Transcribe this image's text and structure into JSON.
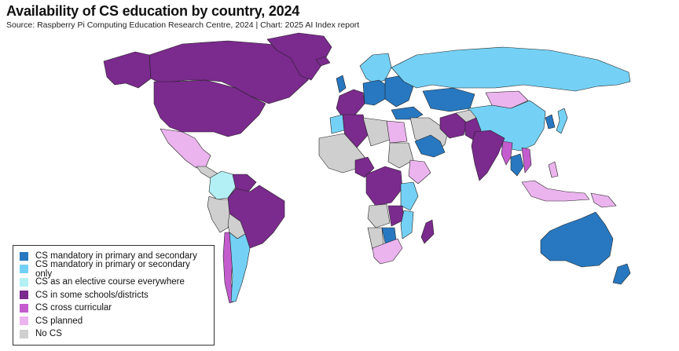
{
  "header": {
    "title": "Availability of CS education by country, 2024",
    "source": "Source: Raspberry Pi Computing Education Research Centre, 2024 | Chart: 2025 AI Index report"
  },
  "legend": {
    "items": [
      {
        "label": "CS mandatory in primary and secondary",
        "color": "#2778c0"
      },
      {
        "label": "CS mandatory in primary or secondary only",
        "color": "#74d1f5"
      },
      {
        "label": "CS as an elective course everywhere",
        "color": "#b3f0f5"
      },
      {
        "label": "CS in some schools/districts",
        "color": "#7b2a8e"
      },
      {
        "label": "CS cross curricular",
        "color": "#c35ccd"
      },
      {
        "label": "CS planned",
        "color": "#ebb4ee"
      },
      {
        "label": "No CS",
        "color": "#cfcfcf"
      }
    ]
  },
  "map": {
    "regions": [
      {
        "name": "Alaska",
        "category": 3
      },
      {
        "name": "Canada",
        "category": 3
      },
      {
        "name": "United States",
        "category": 3
      },
      {
        "name": "Greenland",
        "category": 3
      },
      {
        "name": "Mexico",
        "category": 5
      },
      {
        "name": "Central America",
        "category": 6
      },
      {
        "name": "Colombia",
        "category": 2
      },
      {
        "name": "Venezuela",
        "category": 3
      },
      {
        "name": "Brazil",
        "category": 3
      },
      {
        "name": "Peru",
        "category": 6
      },
      {
        "name": "Bolivia",
        "category": 6
      },
      {
        "name": "Chile",
        "category": 4
      },
      {
        "name": "Argentina",
        "category": 1
      },
      {
        "name": "Iceland",
        "category": 3
      },
      {
        "name": "United Kingdom",
        "category": 0
      },
      {
        "name": "Scandinavia",
        "category": 1
      },
      {
        "name": "Western Europe",
        "category": 3
      },
      {
        "name": "Central Europe",
        "category": 0
      },
      {
        "name": "Eastern Europe",
        "category": 0
      },
      {
        "name": "Russia",
        "category": 1
      },
      {
        "name": "Kazakhstan",
        "category": 0
      },
      {
        "name": "Mongolia",
        "category": 5
      },
      {
        "name": "China",
        "category": 1
      },
      {
        "name": "Korea",
        "category": 0
      },
      {
        "name": "Japan",
        "category": 1
      },
      {
        "name": "Turkey",
        "category": 0
      },
      {
        "name": "Middle East",
        "category": 6
      },
      {
        "name": "Saudi Arabia",
        "category": 0
      },
      {
        "name": "Iran",
        "category": 3
      },
      {
        "name": "Afghanistan",
        "category": 6
      },
      {
        "name": "Pakistan",
        "category": 3
      },
      {
        "name": "India",
        "category": 3
      },
      {
        "name": "Myanmar",
        "category": 4
      },
      {
        "name": "Thailand",
        "category": 0
      },
      {
        "name": "Vietnam",
        "category": 4
      },
      {
        "name": "Philippines",
        "category": 5
      },
      {
        "name": "Indonesia",
        "category": 5
      },
      {
        "name": "Papua New Guinea",
        "category": 5
      },
      {
        "name": "Australia",
        "category": 0
      },
      {
        "name": "New Zealand",
        "category": 0
      },
      {
        "name": "Morocco",
        "category": 1
      },
      {
        "name": "Algeria",
        "category": 3
      },
      {
        "name": "Libya",
        "category": 6
      },
      {
        "name": "Egypt",
        "category": 5
      },
      {
        "name": "West Africa",
        "category": 6
      },
      {
        "name": "Nigeria",
        "category": 3
      },
      {
        "name": "Sudan",
        "category": 6
      },
      {
        "name": "Ethiopia",
        "category": 5
      },
      {
        "name": "Central Africa",
        "category": 3
      },
      {
        "name": "East Africa",
        "category": 1
      },
      {
        "name": "Angola",
        "category": 6
      },
      {
        "name": "Zambia",
        "category": 3
      },
      {
        "name": "Namibia",
        "category": 6
      },
      {
        "name": "Botswana",
        "category": 0
      },
      {
        "name": "South Africa",
        "category": 5
      },
      {
        "name": "Mozambique",
        "category": 1
      },
      {
        "name": "Madagascar",
        "category": 3
      }
    ]
  }
}
